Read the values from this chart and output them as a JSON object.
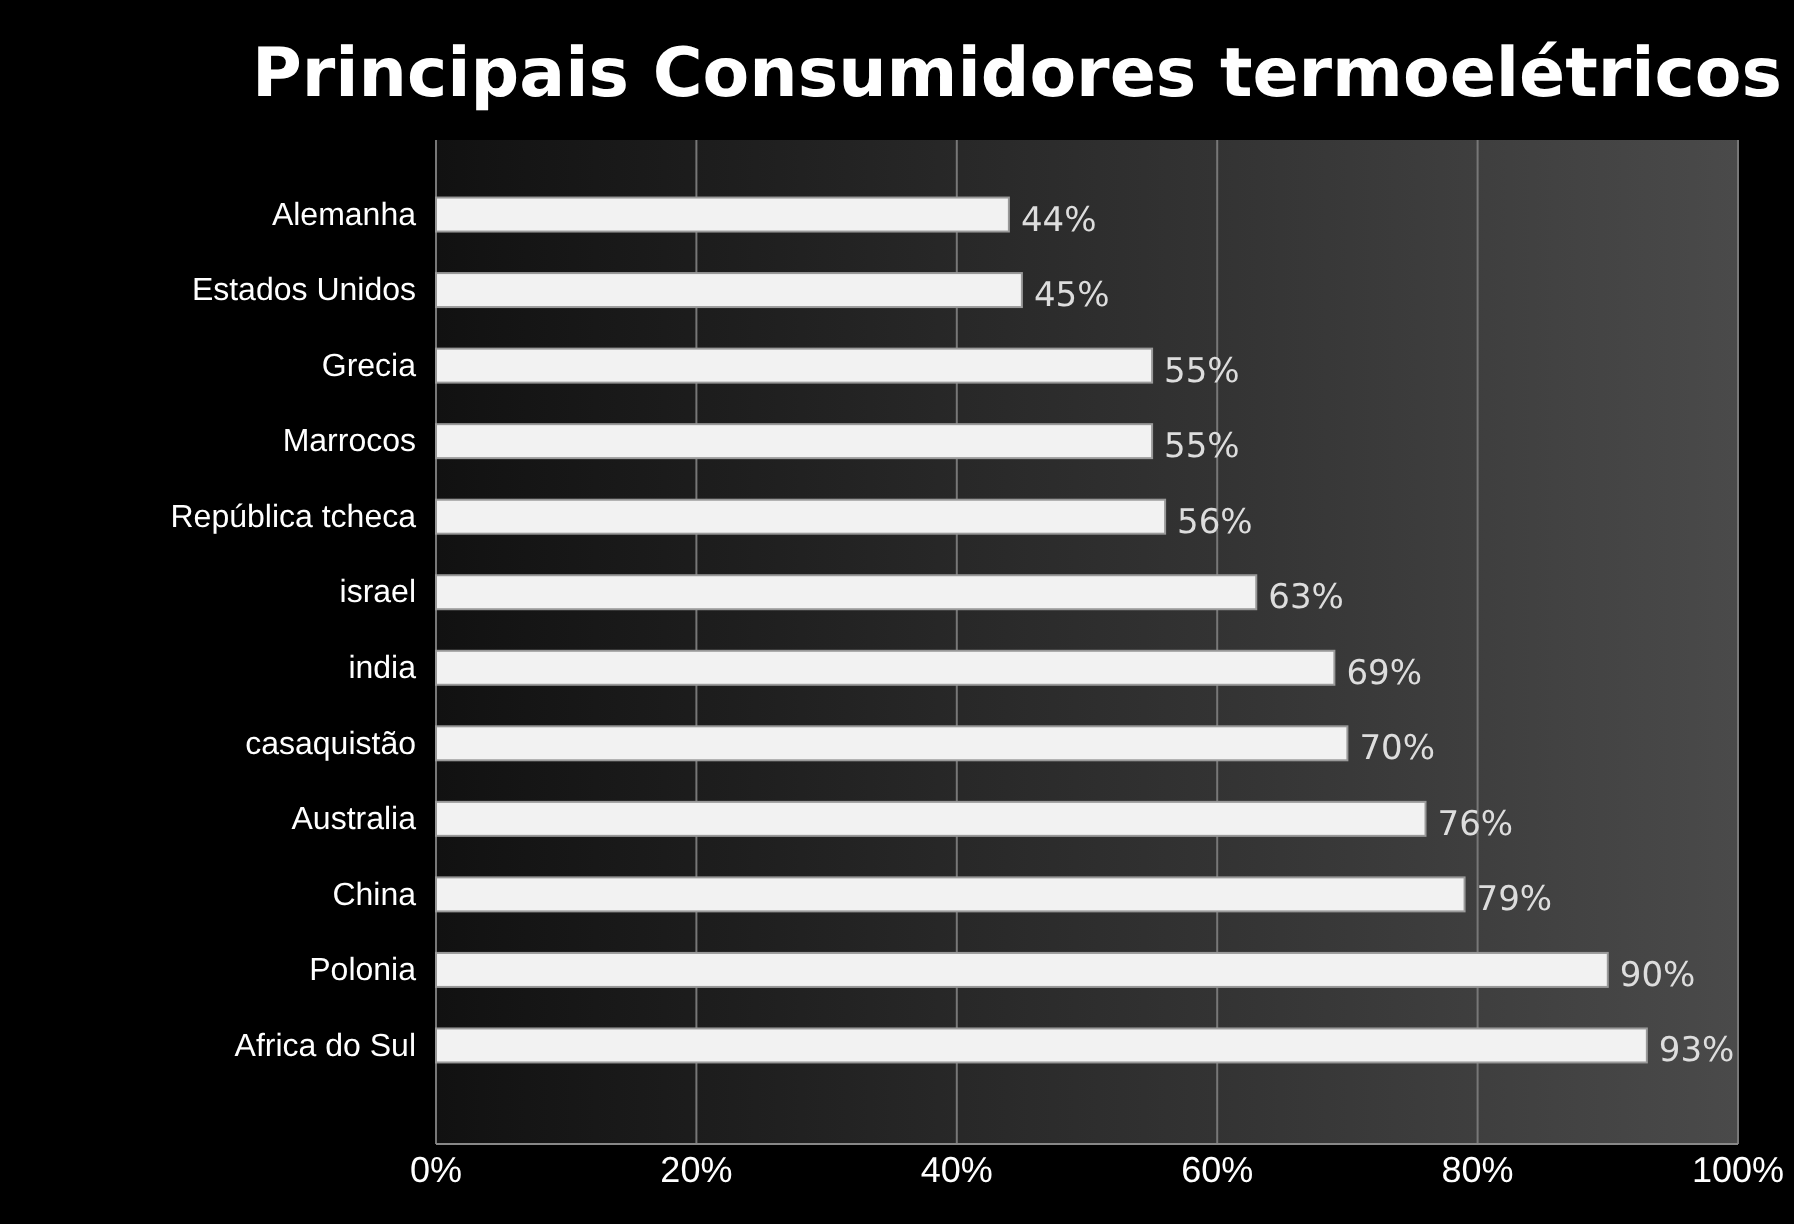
{
  "chart_data": {
    "type": "bar",
    "orientation": "horizontal",
    "title": "Principais Consumidores termoelétricos",
    "categories": [
      "Alemanha",
      "Estados Unidos",
      "Grecia",
      "Marrocos",
      "República tcheca",
      "israel",
      "india",
      "casaquistão",
      "Australia",
      "China",
      "Polonia",
      "Africa do Sul"
    ],
    "values": [
      44,
      45,
      55,
      55,
      56,
      63,
      69,
      70,
      76,
      79,
      90,
      93
    ],
    "color": "#f2f2f2",
    "value_labels": [
      "44%",
      "45%",
      "55%",
      "55%",
      "56%",
      "63%",
      "69%",
      "70%",
      "76%",
      "79%",
      "90%",
      "93%"
    ],
    "xlim": [
      0,
      100
    ],
    "xticks": [
      {
        "value": 0,
        "label": "0%"
      },
      {
        "value": 20,
        "label": "20%"
      },
      {
        "value": 40,
        "label": "40%"
      },
      {
        "value": 60,
        "label": "60%"
      },
      {
        "value": 80,
        "label": "80%"
      },
      {
        "value": 100,
        "label": "100%"
      }
    ],
    "grid": "x"
  }
}
